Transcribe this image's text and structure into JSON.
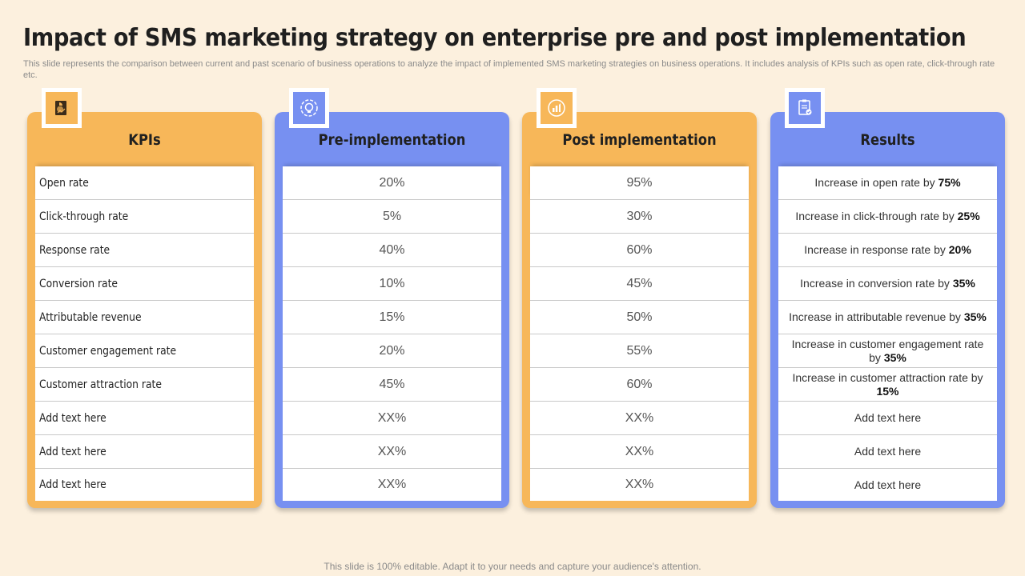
{
  "title": "Impact of SMS marketing strategy on enterprise pre and post implementation",
  "subtitle": "This slide represents the comparison between current and past scenario of business operations to analyze the impact of implemented SMS marketing strategies on business operations. It includes analysis of KPIs such as open rate, click-through rate etc.",
  "footer": "This slide is 100% editable. Adapt it to your needs and capture your audience's attention.",
  "colors": {
    "orange": "#f7b759",
    "blue": "#7790f1",
    "background": "#fcf0de"
  },
  "columns": [
    {
      "title": "KPIs",
      "icon": "document-chart-icon",
      "rows": [
        "Open rate",
        "Click-through rate",
        "Response rate",
        "Conversion rate",
        "Attributable revenue",
        "Customer engagement rate",
        "Customer attraction rate",
        "Add text here",
        "Add text here",
        "Add text here"
      ]
    },
    {
      "title": "Pre-implementation",
      "icon": "lightbulb-gear-icon",
      "rows": [
        "20%",
        "5%",
        "40%",
        "10%",
        "15%",
        "20%",
        "45%",
        "XX%",
        "XX%",
        "XX%"
      ]
    },
    {
      "title": "Post implementation",
      "icon": "rocket-chart-icon",
      "rows": [
        "95%",
        "30%",
        "60%",
        "45%",
        "50%",
        "55%",
        "60%",
        "XX%",
        "XX%",
        "XX%"
      ]
    },
    {
      "title": "Results",
      "icon": "clipboard-check-icon",
      "rows": [
        {
          "text": "Increase in open rate by ",
          "bold": "75%"
        },
        {
          "text": "Increase in click-through rate by ",
          "bold": "25%"
        },
        {
          "text": "Increase in response rate by ",
          "bold": "20%"
        },
        {
          "text": "Increase in conversion rate by ",
          "bold": "35%"
        },
        {
          "text": "Increase in attributable revenue by ",
          "bold": "35%"
        },
        {
          "text": "Increase in customer engagement rate by ",
          "bold": "35%"
        },
        {
          "text": "Increase in customer attraction rate by ",
          "bold": "15%"
        },
        {
          "text": "Add text here",
          "bold": ""
        },
        {
          "text": "Add text here",
          "bold": ""
        },
        {
          "text": "Add text here",
          "bold": ""
        }
      ]
    }
  ]
}
